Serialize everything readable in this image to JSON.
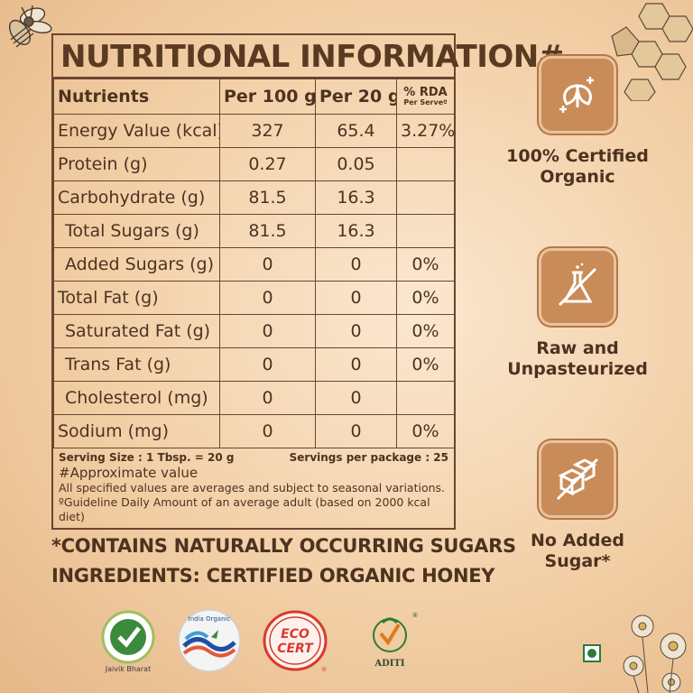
{
  "nutrition": {
    "title": "NUTRITIONAL INFORMATION#",
    "headers": {
      "nutrients": "Nutrients",
      "per100": "Per 100 g",
      "per20": "Per 20 g",
      "rda": "% RDA",
      "rda_sub": "Per Serveº"
    },
    "rows": [
      {
        "name": "Energy Value (kcal)",
        "per100": "327",
        "per20": "65.4",
        "rda": "3.27%"
      },
      {
        "name": "Protein (g)",
        "per100": "0.27",
        "per20": "0.05",
        "rda": ""
      },
      {
        "name": "Carbohydrate (g)",
        "per100": "81.5",
        "per20": "16.3",
        "rda": ""
      },
      {
        "name": "Total Sugars (g)",
        "per100": "81.5",
        "per20": "16.3",
        "rda": ""
      },
      {
        "name": "Added Sugars (g)",
        "per100": "0",
        "per20": "0",
        "rda": "0%"
      },
      {
        "name": "Total Fat (g)",
        "per100": "0",
        "per20": "0",
        "rda": "0%"
      },
      {
        "name": "Saturated Fat (g)",
        "per100": "0",
        "per20": "0",
        "rda": "0%"
      },
      {
        "name": "Trans Fat (g)",
        "per100": "0",
        "per20": "0",
        "rda": "0%"
      },
      {
        "name": "Cholesterol (mg)",
        "per100": "0",
        "per20": "0",
        "rda": ""
      },
      {
        "name": "Sodium (mg)",
        "per100": "0",
        "per20": "0",
        "rda": "0%"
      }
    ],
    "serving_size": "Serving Size : 1 Tbsp. = 20 g",
    "servings_per_package": "Servings per package : 25",
    "approx_note": "#Approximate value",
    "averages_note": "All specified values are averages and subject to seasonal variations.",
    "gda_note": "ºGuideline Daily Amount of an average adult (based on 2000 kcal diet)"
  },
  "claims": {
    "sugars": "*CONTAINS NATURALLY OCCURRING SUGARS",
    "ingredients": "INGREDIENTS: CERTIFIED ORGANIC HONEY"
  },
  "features": [
    {
      "label": "100% Certified Organic",
      "icon": "organic-leaf-icon"
    },
    {
      "label": "Raw and Unpasteurized",
      "icon": "no-flask-icon"
    },
    {
      "label": "No Added Sugar*",
      "icon": "no-sugar-cubes-icon"
    }
  ],
  "logos": {
    "jaivik": "Jaivik Bharat",
    "india_organic": "India Organic",
    "ecocert": "ECO CERT",
    "aditi": "ADITI"
  },
  "colors": {
    "accent": "#c98b58",
    "text": "#4e3220",
    "border": "#6b4530",
    "veg": "#2c7a3a"
  }
}
